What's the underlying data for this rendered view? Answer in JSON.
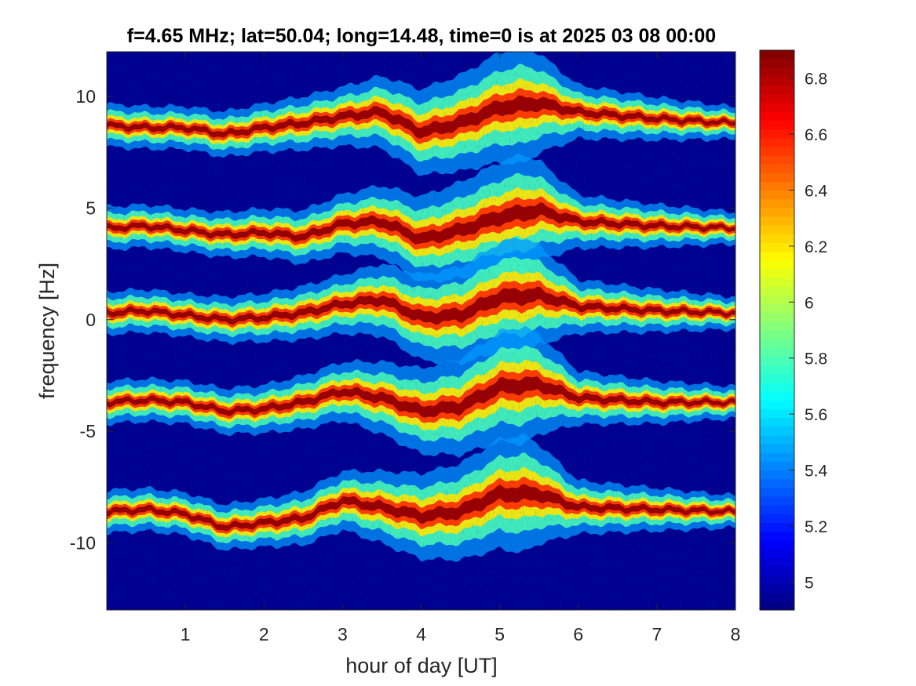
{
  "chart_data": {
    "type": "heatmap",
    "title": "f=4.65 MHz;  lat=50.04; long=14.48, time=0 is at 2025 03 08 00:00",
    "xlabel": "hour of day [UT]",
    "ylabel": "frequency [Hz]",
    "xlim": [
      0,
      8
    ],
    "ylim": [
      -13,
      12
    ],
    "xticks": [
      1,
      2,
      3,
      4,
      5,
      6,
      7,
      8
    ],
    "yticks": [
      -10,
      -5,
      0,
      5,
      10
    ],
    "colorbar": {
      "range": [
        4.9,
        6.9
      ],
      "ticks": [
        5,
        5.2,
        5.4,
        5.6,
        5.8,
        6,
        6.2,
        6.4,
        6.6,
        6.8
      ],
      "colormap": "jet",
      "placement": "right"
    },
    "background_color": "#00008F",
    "grid": false,
    "bands": [
      {
        "center_points": [
          [
            0,
            8.7
          ],
          [
            0.5,
            8.6
          ],
          [
            1,
            8.6
          ],
          [
            1.5,
            8.3
          ],
          [
            2,
            8.6
          ],
          [
            2.5,
            8.8
          ],
          [
            3,
            9.1
          ],
          [
            3.5,
            9.3
          ],
          [
            4,
            8.4
          ],
          [
            4.5,
            8.8
          ],
          [
            5,
            9.5
          ],
          [
            5.5,
            9.7
          ],
          [
            6,
            9.3
          ],
          [
            7,
            9.0
          ],
          [
            8,
            8.8
          ]
        ],
        "spread_points": [
          [
            0,
            0.4
          ],
          [
            1,
            0.4
          ],
          [
            2,
            0.45
          ],
          [
            3,
            0.55
          ],
          [
            4,
            0.8
          ],
          [
            4.5,
            0.9
          ],
          [
            5.3,
            1.1
          ],
          [
            6,
            0.5
          ],
          [
            8,
            0.3
          ]
        ]
      },
      {
        "center_points": [
          [
            0,
            4.1
          ],
          [
            0.5,
            4.2
          ],
          [
            1,
            4.0
          ],
          [
            1.5,
            3.8
          ],
          [
            2,
            3.9
          ],
          [
            2.5,
            3.7
          ],
          [
            3,
            4.3
          ],
          [
            3.5,
            4.4
          ],
          [
            4,
            3.6
          ],
          [
            4.5,
            4.0
          ],
          [
            5,
            4.6
          ],
          [
            5.5,
            4.9
          ],
          [
            6,
            4.4
          ],
          [
            7,
            4.2
          ],
          [
            8,
            4.1
          ]
        ],
        "spread_points": [
          [
            0,
            0.4
          ],
          [
            1,
            0.4
          ],
          [
            2,
            0.45
          ],
          [
            3,
            0.55
          ],
          [
            4,
            0.8
          ],
          [
            4.5,
            0.9
          ],
          [
            5.3,
            1.1
          ],
          [
            6,
            0.5
          ],
          [
            8,
            0.3
          ]
        ]
      },
      {
        "center_points": [
          [
            0,
            0.3
          ],
          [
            0.5,
            0.4
          ],
          [
            1,
            0.2
          ],
          [
            1.5,
            0.0
          ],
          [
            2,
            0.1
          ],
          [
            2.5,
            0.3
          ],
          [
            3,
            0.7
          ],
          [
            3.5,
            0.9
          ],
          [
            4,
            0.1
          ],
          [
            4.5,
            0.2
          ],
          [
            5,
            1.0
          ],
          [
            5.5,
            1.1
          ],
          [
            6,
            0.6
          ],
          [
            7,
            0.4
          ],
          [
            8,
            0.3
          ]
        ],
        "spread_points": [
          [
            0,
            0.4
          ],
          [
            1,
            0.4
          ],
          [
            2,
            0.45
          ],
          [
            3,
            0.55
          ],
          [
            4,
            0.8
          ],
          [
            4.5,
            0.9
          ],
          [
            5.3,
            1.1
          ],
          [
            6,
            0.5
          ],
          [
            8,
            0.3
          ]
        ]
      },
      {
        "center_points": [
          [
            0,
            -3.7
          ],
          [
            0.5,
            -3.6
          ],
          [
            1,
            -3.7
          ],
          [
            1.5,
            -4.1
          ],
          [
            2,
            -4.0
          ],
          [
            2.5,
            -3.7
          ],
          [
            3,
            -3.2
          ],
          [
            3.5,
            -3.5
          ],
          [
            4,
            -4.1
          ],
          [
            4.5,
            -3.9
          ],
          [
            5,
            -3.0
          ],
          [
            5.5,
            -2.9
          ],
          [
            6,
            -3.5
          ],
          [
            7,
            -3.7
          ],
          [
            8,
            -3.7
          ]
        ],
        "spread_points": [
          [
            0,
            0.4
          ],
          [
            1,
            0.4
          ],
          [
            2,
            0.45
          ],
          [
            3,
            0.55
          ],
          [
            4,
            0.8
          ],
          [
            4.5,
            0.9
          ],
          [
            5.3,
            1.1
          ],
          [
            6,
            0.5
          ],
          [
            8,
            0.3
          ]
        ]
      },
      {
        "center_points": [
          [
            0,
            -8.6
          ],
          [
            0.5,
            -8.5
          ],
          [
            1,
            -8.7
          ],
          [
            1.5,
            -9.3
          ],
          [
            2,
            -9.1
          ],
          [
            2.5,
            -8.9
          ],
          [
            3,
            -8.1
          ],
          [
            3.5,
            -8.4
          ],
          [
            4,
            -8.8
          ],
          [
            4.5,
            -8.6
          ],
          [
            5,
            -7.8
          ],
          [
            5.5,
            -7.8
          ],
          [
            6,
            -8.4
          ],
          [
            7,
            -8.5
          ],
          [
            8,
            -8.6
          ]
        ],
        "spread_points": [
          [
            0,
            0.4
          ],
          [
            1,
            0.4
          ],
          [
            2,
            0.45
          ],
          [
            3,
            0.55
          ],
          [
            4,
            0.8
          ],
          [
            4.5,
            0.9
          ],
          [
            5.3,
            1.1
          ],
          [
            6,
            0.5
          ],
          [
            8,
            0.3
          ]
        ]
      }
    ]
  }
}
